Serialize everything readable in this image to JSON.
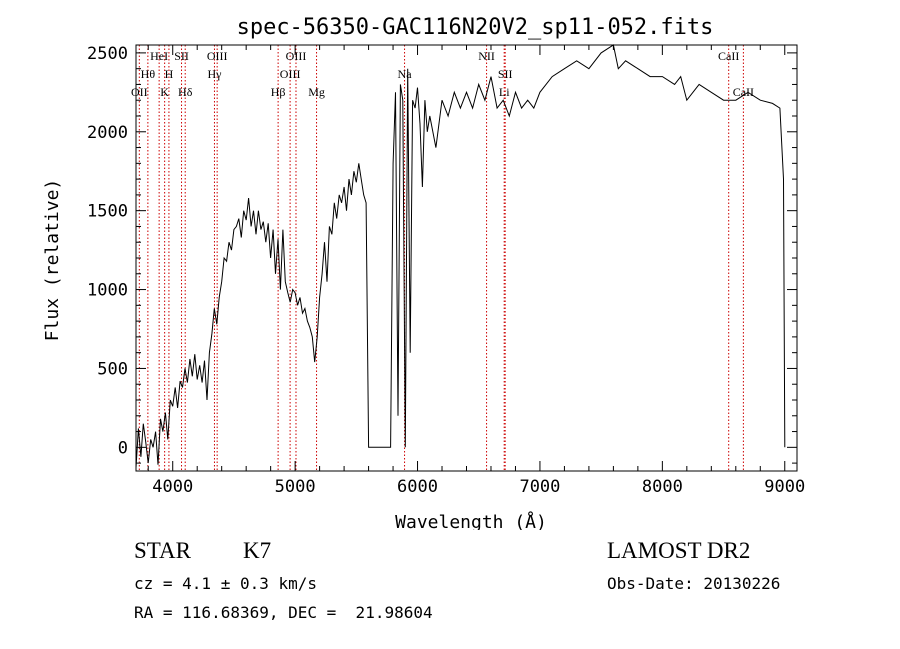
{
  "chart_data": {
    "type": "line",
    "title": "spec-56350-GAC116N20V2_sp11-052.fits",
    "xlabel": "Wavelength (Å)",
    "ylabel": "Flux (relative)",
    "xlim": [
      3700,
      9100
    ],
    "ylim": [
      -150,
      2550
    ],
    "xticks": [
      4000,
      5000,
      6000,
      7000,
      8000,
      9000
    ],
    "yticks": [
      0,
      500,
      1000,
      1500,
      2000,
      2500
    ],
    "grid": false,
    "line_color": "#000000",
    "marker_color": "#cc0000",
    "series": [
      {
        "x": [
          3700,
          3720,
          3740,
          3760,
          3780,
          3800,
          3820,
          3840,
          3860,
          3880,
          3900,
          3920,
          3940,
          3960,
          3980,
          4000,
          4020,
          4040,
          4060,
          4080,
          4100,
          4120,
          4140,
          4160,
          4180,
          4200,
          4220,
          4240,
          4260,
          4280,
          4300,
          4320,
          4340,
          4360,
          4380,
          4400,
          4420,
          4440,
          4460,
          4480,
          4500,
          4520,
          4540,
          4560,
          4580,
          4600,
          4620,
          4640,
          4660,
          4680,
          4700,
          4720,
          4740,
          4760,
          4780,
          4800,
          4820,
          4840,
          4860,
          4880,
          4900,
          4920,
          4940,
          4960,
          4980,
          5000,
          5020,
          5040,
          5060,
          5080,
          5100,
          5120,
          5140,
          5160,
          5180,
          5200,
          5220,
          5240,
          5260,
          5280,
          5300,
          5320,
          5340,
          5360,
          5380,
          5400,
          5420,
          5440,
          5460,
          5480,
          5500,
          5520,
          5540,
          5560,
          5580,
          5600,
          5620,
          5640,
          5660,
          5680,
          5700,
          5720,
          5740,
          5760,
          5780,
          5800,
          5820,
          5840,
          5860,
          5880,
          5900,
          5920,
          5940,
          5960,
          5980,
          6000,
          6020,
          6040,
          6060,
          6080,
          6100,
          6150,
          6200,
          6250,
          6300,
          6350,
          6400,
          6450,
          6500,
          6550,
          6600,
          6650,
          6700,
          6750,
          6800,
          6850,
          6900,
          6950,
          7000,
          7100,
          7200,
          7300,
          7400,
          7500,
          7600,
          7640,
          7700,
          7800,
          7900,
          8000,
          8100,
          8150,
          8200,
          8300,
          8400,
          8500,
          8600,
          8700,
          8800,
          8900,
          8960,
          8990,
          9000
        ],
        "y": [
          -130,
          120,
          -60,
          150,
          30,
          -100,
          50,
          0,
          100,
          -110,
          180,
          100,
          220,
          50,
          300,
          260,
          380,
          250,
          420,
          380,
          500,
          410,
          560,
          450,
          590,
          430,
          520,
          410,
          550,
          300,
          600,
          720,
          880,
          780,
          950,
          1050,
          1200,
          1180,
          1300,
          1250,
          1380,
          1400,
          1450,
          1330,
          1500,
          1440,
          1580,
          1400,
          1500,
          1350,
          1500,
          1380,
          1430,
          1300,
          1420,
          1200,
          1380,
          1100,
          1320,
          1000,
          1380,
          1050,
          980,
          920,
          1000,
          980,
          900,
          950,
          850,
          880,
          800,
          760,
          700,
          540,
          700,
          950,
          1100,
          1300,
          1050,
          1400,
          1350,
          1550,
          1450,
          1600,
          1550,
          1650,
          1500,
          1700,
          1600,
          1750,
          1680,
          1800,
          1700,
          1600,
          1550,
          0,
          0,
          0,
          0,
          0,
          0,
          0,
          0,
          0,
          0,
          1800,
          2250,
          200,
          2300,
          2200,
          0,
          2400,
          600,
          2200,
          2150,
          2280,
          2050,
          1650,
          2200,
          2000,
          2100,
          1900,
          2200,
          2100,
          2250,
          2150,
          2250,
          2150,
          2300,
          2200,
          2350,
          2150,
          2200,
          2100,
          2250,
          2150,
          2200,
          2150,
          2250,
          2350,
          2400,
          2450,
          2400,
          2500,
          2550,
          2400,
          2450,
          2400,
          2350,
          2350,
          2300,
          2350,
          2200,
          2300,
          2250,
          2200,
          2200,
          2250,
          2200,
          2180,
          2150,
          1700,
          0
        ]
      }
    ],
    "lines": [
      {
        "x": 3727,
        "labels": [
          "OII"
        ],
        "row": 3
      },
      {
        "x": 3797,
        "labels": [
          "Hθ"
        ],
        "row": 2
      },
      {
        "x": 3889,
        "labels": [
          "HeI"
        ],
        "row": 1
      },
      {
        "x": 3934,
        "labels": [
          "K"
        ],
        "row": 3
      },
      {
        "x": 3969,
        "labels": [
          "H"
        ],
        "row": 2
      },
      {
        "x": 4072,
        "labels": [
          "SII"
        ],
        "row": 1
      },
      {
        "x": 4102,
        "labels": [
          "Hδ"
        ],
        "row": 3
      },
      {
        "x": 4341,
        "labels": [
          "Hγ"
        ],
        "row": 2
      },
      {
        "x": 4363,
        "labels": [
          "OIII"
        ],
        "row": 1
      },
      {
        "x": 4861,
        "labels": [
          "Hβ"
        ],
        "row": 3
      },
      {
        "x": 4959,
        "labels": [
          "OIII"
        ],
        "row": 2
      },
      {
        "x": 5007,
        "labels": [
          "OIII"
        ],
        "row": 1
      },
      {
        "x": 5175,
        "labels": [
          "Mg"
        ],
        "row": 3
      },
      {
        "x": 5894,
        "labels": [
          "Na"
        ],
        "row": 2
      },
      {
        "x": 6564,
        "labels": [
          "NII"
        ],
        "row": 1
      },
      {
        "x": 6716,
        "labels": [
          "SII"
        ],
        "row": 2
      },
      {
        "x": 6708,
        "labels": [
          "Li"
        ],
        "row": 3
      },
      {
        "x": 8542,
        "labels": [
          "CaII"
        ],
        "row": 1
      },
      {
        "x": 8662,
        "labels": [
          "CaII"
        ],
        "row": 3
      }
    ]
  },
  "info": {
    "class_label": "STAR",
    "subclass_label": "K7",
    "cz_text": "cz = 4.1 ± 0.3 km/s",
    "radec_text": "RA = 116.68369, DEC =  21.98604",
    "survey_text": "LAMOST DR2",
    "obsdate_text": "Obs-Date: 20130226"
  }
}
